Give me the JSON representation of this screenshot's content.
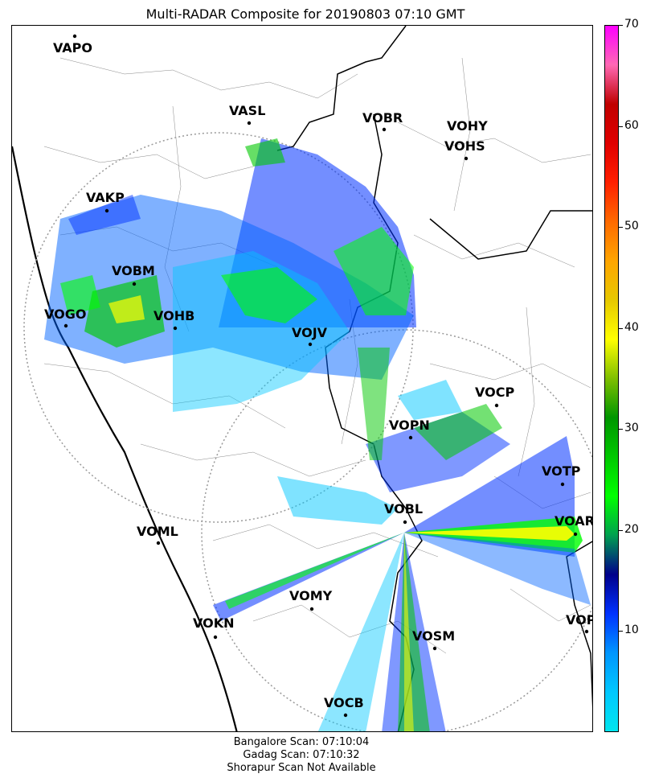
{
  "title": "Multi-RADAR Composite for 20190803 07:10 GMT",
  "footer": {
    "line1": "Bangalore Scan: 07:10:04",
    "line2": "Gadag Scan: 07:10:32",
    "line3": "Shorapur Scan Not Available"
  },
  "colorbar": {
    "min": 0,
    "max": 70,
    "ticks": [
      "10",
      "20",
      "30",
      "40",
      "50",
      "60",
      "70"
    ],
    "colors": [
      "#00e5ee",
      "#00c8ff",
      "#0096ff",
      "#0032ff",
      "#00008b",
      "#00a050",
      "#00ff00",
      "#00c800",
      "#009600",
      "#7fbf00",
      "#ffff00",
      "#e6c800",
      "#ffa500",
      "#ff6a00",
      "#ff2000",
      "#e00000",
      "#c00000",
      "#ff69b4",
      "#ff00ff"
    ]
  },
  "stations": [
    {
      "id": "VAPO"
    },
    {
      "id": "VASL"
    },
    {
      "id": "VOBR"
    },
    {
      "id": "VOHY"
    },
    {
      "id": "VOHS"
    },
    {
      "id": "VAKP"
    },
    {
      "id": "VOBM"
    },
    {
      "id": "VOGO"
    },
    {
      "id": "VOHB"
    },
    {
      "id": "VOJV"
    },
    {
      "id": "VOCP"
    },
    {
      "id": "VOPN"
    },
    {
      "id": "VOTP"
    },
    {
      "id": "VOBL"
    },
    {
      "id": "VOAR"
    },
    {
      "id": "VOML"
    },
    {
      "id": "VOMY"
    },
    {
      "id": "VOKN"
    },
    {
      "id": "VOSM"
    },
    {
      "id": "VOPC"
    },
    {
      "id": "VOCB"
    }
  ]
}
